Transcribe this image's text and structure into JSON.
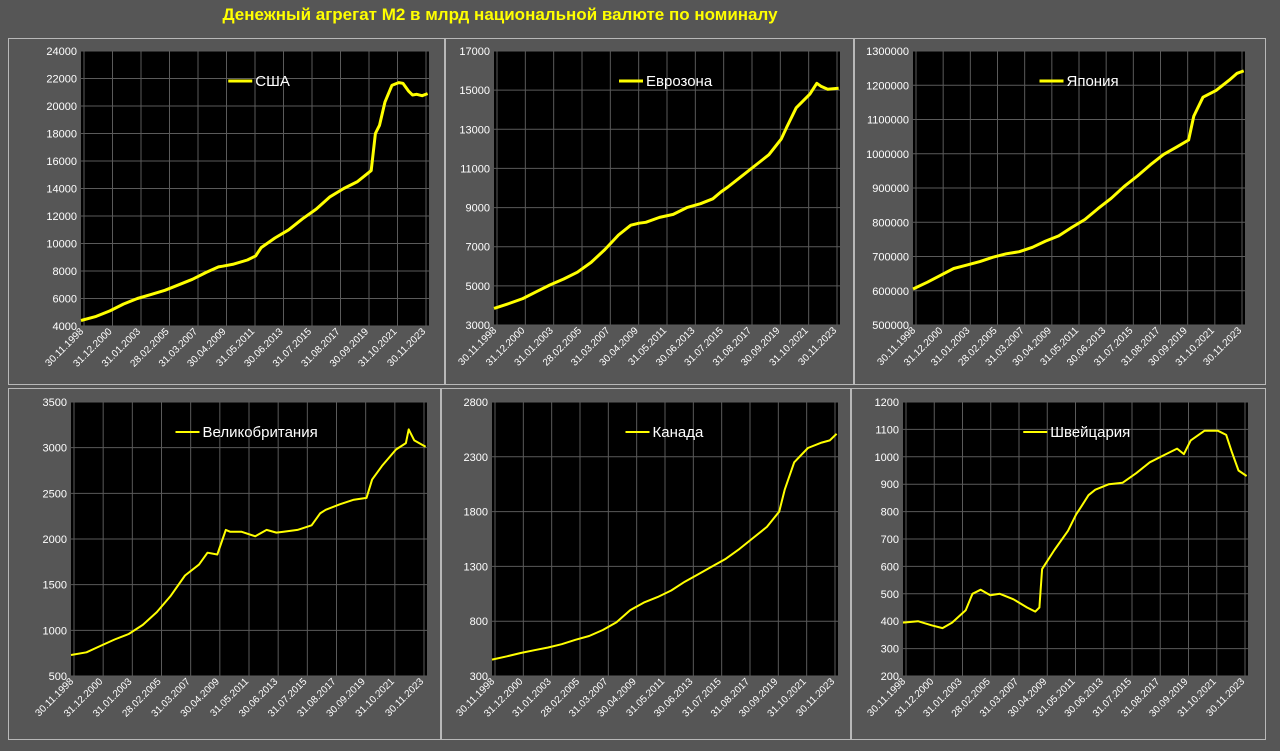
{
  "page": {
    "title": "Денежный агрегат М2 в млрд национальной валюте по номиналу",
    "accent_color": "#ffff00",
    "background_color": "#565656",
    "plot_background_color": "#000000",
    "grid_color": "#5a5a5a"
  },
  "x_tick_labels": [
    "30.11.1998",
    "31.12.2000",
    "31.01.2003",
    "28.02.2005",
    "31.03.2007",
    "30.04.2009",
    "31.05.2011",
    "30.06.2013",
    "31.07.2015",
    "31.08.2017",
    "30.09.2019",
    "31.10.2021",
    "30.11.2023"
  ],
  "chart_data": [
    {
      "type": "line",
      "legend": "США",
      "legend_position": "top-center",
      "ylim": [
        4000,
        24000
      ],
      "yticks": [
        4000,
        6000,
        8000,
        10000,
        12000,
        14000,
        16000,
        18000,
        20000,
        22000,
        24000
      ],
      "ytick_labels": [
        "4000",
        "6000",
        "8000",
        "10000",
        "12000",
        "14000",
        "16000",
        "18000",
        "20000",
        "22000",
        "24000"
      ],
      "xlim": [
        1998.9,
        2024.2
      ],
      "grid": true,
      "x": [
        1998.9,
        2000,
        2001,
        2002,
        2003,
        2004,
        2005,
        2006,
        2007,
        2008,
        2008.9,
        2009.2,
        2010,
        2011,
        2011.6,
        2012,
        2013,
        2014,
        2015,
        2016,
        2017,
        2018,
        2019,
        2020.0,
        2020.3,
        2020.6,
        2021,
        2021.5,
        2022.0,
        2022.3,
        2022.7,
        2023.0,
        2023.3,
        2023.7,
        2024.1
      ],
      "values": [
        4400,
        4700,
        5100,
        5600,
        6000,
        6300,
        6600,
        7000,
        7400,
        7900,
        8300,
        8350,
        8500,
        8800,
        9100,
        9700,
        10400,
        11000,
        11800,
        12500,
        13400,
        14000,
        14500,
        15300,
        18000,
        18600,
        20300,
        21500,
        21700,
        21650,
        21100,
        20800,
        20850,
        20750,
        20900
      ]
    },
    {
      "type": "line",
      "legend": "Еврозона",
      "legend_position": "top-center",
      "ylim": [
        3000,
        17000
      ],
      "yticks": [
        3000,
        5000,
        7000,
        9000,
        11000,
        13000,
        15000,
        17000
      ],
      "ytick_labels": [
        "3000",
        "5000",
        "7000",
        "9000",
        "11000",
        "13000",
        "15000",
        "17000"
      ],
      "xlim": [
        1998.9,
        2024.2
      ],
      "grid": true,
      "x": [
        1998.9,
        2000,
        2001,
        2002,
        2003,
        2004,
        2005,
        2006,
        2007,
        2008,
        2008.9,
        2009.5,
        2010,
        2011,
        2012,
        2013,
        2014,
        2014.9,
        2015.5,
        2016,
        2017,
        2018,
        2019,
        2019.9,
        2020.3,
        2021,
        2022.0,
        2022.5,
        2022.8,
        2023.3,
        2024.1
      ],
      "values": [
        3850,
        4100,
        4350,
        4700,
        5050,
        5350,
        5700,
        6200,
        6850,
        7600,
        8100,
        8200,
        8250,
        8500,
        8650,
        9000,
        9200,
        9450,
        9800,
        10050,
        10600,
        11150,
        11700,
        12500,
        13100,
        14100,
        14800,
        15350,
        15200,
        15050,
        15100
      ]
    },
    {
      "type": "line",
      "legend": "Япония",
      "legend_position": "top-center",
      "ylim": [
        500000,
        1300000
      ],
      "yticks": [
        500000,
        600000,
        700000,
        800000,
        900000,
        1000000,
        1100000,
        1200000,
        1300000
      ],
      "ytick_labels": [
        "500000",
        "600000",
        "700000",
        "800000",
        "900000",
        "1000000",
        "1100000",
        "1200000",
        "1300000"
      ],
      "xlim": [
        1998.9,
        2024.2
      ],
      "grid": true,
      "x": [
        1998.9,
        2000,
        2001,
        2002,
        2003,
        2004,
        2005,
        2006,
        2007,
        2008,
        2009,
        2010,
        2011,
        2012,
        2013,
        2014,
        2015,
        2016,
        2017,
        2018,
        2019,
        2019.9,
        2020.3,
        2021,
        2022,
        2023,
        2023.6,
        2024.1
      ],
      "values": [
        605000,
        625000,
        645000,
        665000,
        675000,
        685000,
        698000,
        708000,
        714000,
        727000,
        745000,
        760000,
        785000,
        808000,
        840000,
        870000,
        905000,
        935000,
        968000,
        998000,
        1020000,
        1040000,
        1110000,
        1165000,
        1185000,
        1215000,
        1235000,
        1242000
      ]
    },
    {
      "type": "line",
      "legend": "Великобритания",
      "legend_position": "top-center",
      "ylim": [
        500,
        3500
      ],
      "yticks": [
        500,
        1000,
        1500,
        2000,
        2500,
        3000,
        3500
      ],
      "ytick_labels": [
        "500",
        "1000",
        "1500",
        "2000",
        "2500",
        "3000",
        "3500"
      ],
      "xlim": [
        1998.9,
        2024.2
      ],
      "grid": true,
      "x": [
        1998.9,
        2000,
        2001,
        2002,
        2003,
        2004,
        2005,
        2006,
        2007,
        2008,
        2008.6,
        2009.3,
        2009.9,
        2010.2,
        2011,
        2012,
        2012.8,
        2013.5,
        2014,
        2015,
        2016,
        2016.6,
        2017,
        2018,
        2019,
        2019.9,
        2020.3,
        2021,
        2022,
        2022.7,
        2022.9,
        2023.3,
        2024.1
      ],
      "values": [
        730,
        760,
        830,
        900,
        960,
        1060,
        1200,
        1380,
        1600,
        1720,
        1850,
        1830,
        2100,
        2080,
        2080,
        2030,
        2100,
        2070,
        2080,
        2100,
        2150,
        2280,
        2320,
        2380,
        2430,
        2450,
        2650,
        2800,
        2980,
        3050,
        3200,
        3080,
        3010
      ]
    },
    {
      "type": "line",
      "legend": "Канада",
      "legend_position": "top-center",
      "ylim": [
        300,
        2800
      ],
      "yticks": [
        300,
        800,
        1300,
        1800,
        2300,
        2800
      ],
      "ytick_labels": [
        "300",
        "800",
        "1300",
        "1800",
        "2300",
        "2800"
      ],
      "xlim": [
        1998.9,
        2024.2
      ],
      "grid": true,
      "x": [
        1998.9,
        2000,
        2001,
        2002,
        2003,
        2004,
        2005,
        2006,
        2007,
        2008,
        2009,
        2010,
        2011,
        2012,
        2013,
        2014,
        2015,
        2016,
        2017,
        2018,
        2019,
        2019.9,
        2020.3,
        2021,
        2022,
        2023,
        2023.6,
        2024.1
      ],
      "values": [
        450,
        480,
        510,
        535,
        560,
        590,
        630,
        665,
        720,
        790,
        900,
        970,
        1020,
        1080,
        1160,
        1230,
        1300,
        1370,
        1460,
        1560,
        1660,
        1800,
        2000,
        2250,
        2380,
        2430,
        2450,
        2510
      ]
    },
    {
      "type": "line",
      "legend": "Швейцария",
      "legend_position": "top-center",
      "ylim": [
        200,
        1200
      ],
      "yticks": [
        200,
        300,
        400,
        500,
        600,
        700,
        800,
        900,
        1000,
        1100,
        1200
      ],
      "ytick_labels": [
        "200",
        "300",
        "400",
        "500",
        "600",
        "700",
        "800",
        "900",
        "1000",
        "1100",
        "1200"
      ],
      "xlim": [
        1998.9,
        2024.2
      ],
      "grid": true,
      "x": [
        1998.9,
        2000,
        2001,
        2001.8,
        2002.5,
        2003.5,
        2004,
        2004.6,
        2005.3,
        2006,
        2007,
        2008,
        2008.6,
        2008.9,
        2009.1,
        2010,
        2011,
        2011.6,
        2012,
        2012.5,
        2013,
        2014,
        2015,
        2016,
        2017,
        2018,
        2019,
        2019.5,
        2020,
        2021,
        2022,
        2022.6,
        2023,
        2023.5,
        2024.1
      ],
      "values": [
        395,
        400,
        385,
        375,
        395,
        440,
        500,
        515,
        495,
        500,
        480,
        450,
        435,
        450,
        590,
        660,
        730,
        790,
        820,
        860,
        880,
        900,
        905,
        940,
        980,
        1005,
        1030,
        1010,
        1060,
        1095,
        1095,
        1080,
        1020,
        950,
        930
      ]
    }
  ]
}
